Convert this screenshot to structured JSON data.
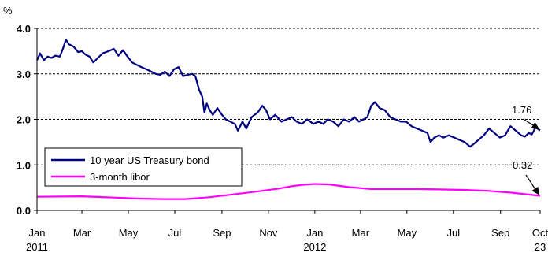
{
  "chart_data": {
    "type": "line",
    "ylabel": "%",
    "ylim": [
      0.0,
      4.0
    ],
    "yticks": [
      "0.0",
      "1.0",
      "2.0",
      "3.0",
      "4.0"
    ],
    "xticks": [
      {
        "top": "Jan",
        "bottom": "2011"
      },
      {
        "top": "Mar",
        "bottom": ""
      },
      {
        "top": "May",
        "bottom": ""
      },
      {
        "top": "Jul",
        "bottom": ""
      },
      {
        "top": "Sep",
        "bottom": ""
      },
      {
        "top": "Nov",
        "bottom": ""
      },
      {
        "top": "Jan",
        "bottom": "2012"
      },
      {
        "top": "Mar",
        "bottom": ""
      },
      {
        "top": "May",
        "bottom": ""
      },
      {
        "top": "Jul",
        "bottom": ""
      },
      {
        "top": "Sep",
        "bottom": ""
      },
      {
        "top": "Oct",
        "bottom": "23"
      }
    ],
    "xtick_dates": [
      "2011-01-01",
      "2011-03-01",
      "2011-05-01",
      "2011-07-01",
      "2011-09-01",
      "2011-11-01",
      "2012-01-01",
      "2012-03-01",
      "2012-05-01",
      "2012-07-01",
      "2012-09-01",
      "2012-10-23"
    ],
    "x_range": [
      "2011-01-01",
      "2012-10-23"
    ],
    "grid": "horizontal dashed",
    "legend_position": "left-middle",
    "series": [
      {
        "name": "10 year US Treasury bond",
        "color": "#000080",
        "points": [
          [
            "2011-01-01",
            3.3
          ],
          [
            "2011-01-05",
            3.45
          ],
          [
            "2011-01-10",
            3.3
          ],
          [
            "2011-01-15",
            3.38
          ],
          [
            "2011-01-20",
            3.35
          ],
          [
            "2011-01-25",
            3.4
          ],
          [
            "2011-01-31",
            3.38
          ],
          [
            "2011-02-04",
            3.55
          ],
          [
            "2011-02-08",
            3.75
          ],
          [
            "2011-02-12",
            3.65
          ],
          [
            "2011-02-18",
            3.6
          ],
          [
            "2011-02-24",
            3.48
          ],
          [
            "2011-03-01",
            3.5
          ],
          [
            "2011-03-06",
            3.42
          ],
          [
            "2011-03-11",
            3.38
          ],
          [
            "2011-03-16",
            3.25
          ],
          [
            "2011-03-22",
            3.35
          ],
          [
            "2011-03-28",
            3.45
          ],
          [
            "2011-04-05",
            3.5
          ],
          [
            "2011-04-12",
            3.55
          ],
          [
            "2011-04-18",
            3.4
          ],
          [
            "2011-04-24",
            3.52
          ],
          [
            "2011-04-30",
            3.38
          ],
          [
            "2011-05-06",
            3.25
          ],
          [
            "2011-05-12",
            3.2
          ],
          [
            "2011-05-18",
            3.15
          ],
          [
            "2011-05-25",
            3.1
          ],
          [
            "2011-05-31",
            3.05
          ],
          [
            "2011-06-06",
            3.0
          ],
          [
            "2011-06-12",
            2.98
          ],
          [
            "2011-06-18",
            3.05
          ],
          [
            "2011-06-24",
            2.95
          ],
          [
            "2011-06-30",
            3.1
          ],
          [
            "2011-07-06",
            3.15
          ],
          [
            "2011-07-12",
            2.95
          ],
          [
            "2011-07-18",
            2.98
          ],
          [
            "2011-07-24",
            3.0
          ],
          [
            "2011-07-28",
            2.95
          ],
          [
            "2011-08-02",
            2.65
          ],
          [
            "2011-08-06",
            2.5
          ],
          [
            "2011-08-09",
            2.15
          ],
          [
            "2011-08-12",
            2.35
          ],
          [
            "2011-08-16",
            2.2
          ],
          [
            "2011-08-20",
            2.1
          ],
          [
            "2011-08-26",
            2.25
          ],
          [
            "2011-09-01",
            2.1
          ],
          [
            "2011-09-06",
            2.0
          ],
          [
            "2011-09-12",
            1.95
          ],
          [
            "2011-09-18",
            1.9
          ],
          [
            "2011-09-22",
            1.75
          ],
          [
            "2011-09-28",
            1.95
          ],
          [
            "2011-10-03",
            1.8
          ],
          [
            "2011-10-10",
            2.05
          ],
          [
            "2011-10-18",
            2.15
          ],
          [
            "2011-10-24",
            2.3
          ],
          [
            "2011-10-29",
            2.2
          ],
          [
            "2011-11-03",
            2.0
          ],
          [
            "2011-11-10",
            2.1
          ],
          [
            "2011-11-18",
            1.95
          ],
          [
            "2011-11-25",
            2.0
          ],
          [
            "2011-12-02",
            2.05
          ],
          [
            "2011-12-08",
            1.95
          ],
          [
            "2011-12-15",
            1.9
          ],
          [
            "2011-12-22",
            2.0
          ],
          [
            "2011-12-30",
            1.9
          ],
          [
            "2012-01-06",
            1.95
          ],
          [
            "2012-01-12",
            1.9
          ],
          [
            "2012-01-18",
            2.0
          ],
          [
            "2012-01-25",
            1.95
          ],
          [
            "2012-02-01",
            1.85
          ],
          [
            "2012-02-08",
            2.0
          ],
          [
            "2012-02-15",
            1.95
          ],
          [
            "2012-02-22",
            2.05
          ],
          [
            "2012-02-28",
            1.95
          ],
          [
            "2012-03-05",
            2.0
          ],
          [
            "2012-03-10",
            2.05
          ],
          [
            "2012-03-15",
            2.3
          ],
          [
            "2012-03-20",
            2.38
          ],
          [
            "2012-03-26",
            2.25
          ],
          [
            "2012-04-02",
            2.2
          ],
          [
            "2012-04-09",
            2.05
          ],
          [
            "2012-04-16",
            2.0
          ],
          [
            "2012-04-23",
            1.95
          ],
          [
            "2012-04-30",
            1.95
          ],
          [
            "2012-05-07",
            1.85
          ],
          [
            "2012-05-14",
            1.8
          ],
          [
            "2012-05-21",
            1.75
          ],
          [
            "2012-05-28",
            1.7
          ],
          [
            "2012-06-01",
            1.5
          ],
          [
            "2012-06-06",
            1.6
          ],
          [
            "2012-06-12",
            1.65
          ],
          [
            "2012-06-18",
            1.6
          ],
          [
            "2012-06-25",
            1.65
          ],
          [
            "2012-07-02",
            1.6
          ],
          [
            "2012-07-09",
            1.55
          ],
          [
            "2012-07-16",
            1.5
          ],
          [
            "2012-07-23",
            1.4
          ],
          [
            "2012-07-27",
            1.45
          ],
          [
            "2012-08-03",
            1.55
          ],
          [
            "2012-08-10",
            1.65
          ],
          [
            "2012-08-17",
            1.8
          ],
          [
            "2012-08-24",
            1.7
          ],
          [
            "2012-08-31",
            1.6
          ],
          [
            "2012-09-07",
            1.65
          ],
          [
            "2012-09-14",
            1.85
          ],
          [
            "2012-09-21",
            1.75
          ],
          [
            "2012-09-28",
            1.65
          ],
          [
            "2012-10-03",
            1.62
          ],
          [
            "2012-10-08",
            1.7
          ],
          [
            "2012-10-12",
            1.67
          ],
          [
            "2012-10-17",
            1.82
          ],
          [
            "2012-10-23",
            1.76
          ]
        ]
      },
      {
        "name": "3-month libor",
        "color": "#ff00ff",
        "points": [
          [
            "2011-01-01",
            0.3
          ],
          [
            "2011-03-01",
            0.31
          ],
          [
            "2011-04-15",
            0.28
          ],
          [
            "2011-05-15",
            0.26
          ],
          [
            "2011-06-15",
            0.25
          ],
          [
            "2011-07-15",
            0.25
          ],
          [
            "2011-08-15",
            0.29
          ],
          [
            "2011-09-15",
            0.35
          ],
          [
            "2011-10-15",
            0.41
          ],
          [
            "2011-11-15",
            0.48
          ],
          [
            "2011-12-01",
            0.53
          ],
          [
            "2011-12-15",
            0.56
          ],
          [
            "2012-01-01",
            0.58
          ],
          [
            "2012-01-20",
            0.57
          ],
          [
            "2012-02-15",
            0.51
          ],
          [
            "2012-03-15",
            0.47
          ],
          [
            "2012-05-15",
            0.47
          ],
          [
            "2012-07-15",
            0.45
          ],
          [
            "2012-08-15",
            0.43
          ],
          [
            "2012-09-15",
            0.39
          ],
          [
            "2012-10-23",
            0.32
          ]
        ]
      }
    ],
    "annotations": [
      {
        "label": "1.76",
        "date": "2012-10-23",
        "value": 1.76
      },
      {
        "label": "0.32",
        "date": "2012-10-23",
        "value": 0.32
      }
    ]
  }
}
